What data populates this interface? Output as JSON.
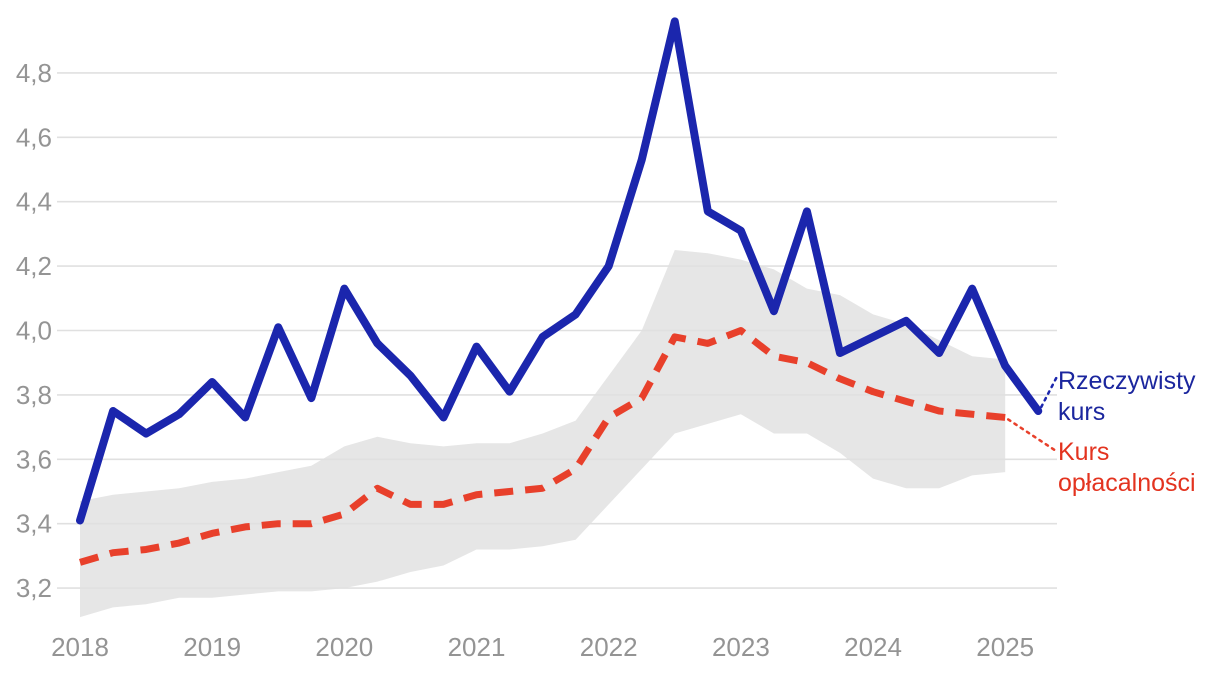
{
  "chart_data": {
    "type": "line",
    "title": "",
    "xlabel": "",
    "ylabel": "",
    "grid": true,
    "decimal_separator": ",",
    "x_start_year": 2018,
    "points_per_year": 4,
    "x_tick_labels": [
      "2018",
      "2019",
      "2020",
      "2021",
      "2022",
      "2023",
      "2024",
      "2025"
    ],
    "y_tick_labels": [
      "4,8",
      "4,6",
      "4,4",
      "4,2",
      "4,0",
      "3,8",
      "3,6",
      "3,4",
      "3,2"
    ],
    "y_tick_values": [
      4.8,
      4.6,
      4.4,
      4.2,
      4.0,
      3.8,
      3.6,
      3.4,
      3.2
    ],
    "ylim": [
      3.05,
      5.0
    ],
    "legend_position": "right-inline",
    "series": [
      {
        "name": "Rzeczywisty kurs",
        "color": "#1b26ad",
        "style": "solid",
        "values": [
          3.41,
          3.75,
          3.68,
          3.74,
          3.84,
          3.73,
          4.01,
          3.79,
          4.13,
          3.96,
          3.86,
          3.73,
          3.95,
          3.81,
          3.98,
          4.05,
          4.2,
          4.53,
          4.96,
          4.37,
          4.31,
          4.06,
          4.37,
          3.93,
          3.98,
          4.03,
          3.93,
          4.13,
          3.89,
          3.75
        ]
      },
      {
        "name": "Kurs opłacalności",
        "color": "#e8402b",
        "style": "dashed",
        "values": [
          3.28,
          3.31,
          3.32,
          3.34,
          3.37,
          3.39,
          3.4,
          3.4,
          3.43,
          3.51,
          3.46,
          3.46,
          3.49,
          3.5,
          3.51,
          3.57,
          3.73,
          3.79,
          3.98,
          3.96,
          4.0,
          3.92,
          3.9,
          3.85,
          3.81,
          3.78,
          3.75,
          3.74,
          3.73
        ]
      }
    ],
    "band": {
      "name": "breakeven-range-band",
      "color": "#e6e6e6",
      "top": [
        3.47,
        3.49,
        3.5,
        3.51,
        3.53,
        3.54,
        3.56,
        3.58,
        3.64,
        3.67,
        3.65,
        3.64,
        3.65,
        3.65,
        3.68,
        3.72,
        3.86,
        4.0,
        4.25,
        4.24,
        4.22,
        4.19,
        4.13,
        4.11,
        4.05,
        4.02,
        3.97,
        3.92,
        3.91
      ],
      "bottom": [
        3.11,
        3.14,
        3.15,
        3.17,
        3.17,
        3.18,
        3.19,
        3.19,
        3.2,
        3.22,
        3.25,
        3.27,
        3.32,
        3.32,
        3.33,
        3.35,
        3.46,
        3.57,
        3.68,
        3.71,
        3.74,
        3.68,
        3.68,
        3.62,
        3.54,
        3.51,
        3.51,
        3.55,
        3.56
      ]
    },
    "colors": {
      "grid_line": "#e0e0e0",
      "axis_text": "#949494",
      "actual_line": "#1b26ad",
      "breakeven_line": "#e8402b",
      "band_fill": "#e6e6e6"
    }
  }
}
